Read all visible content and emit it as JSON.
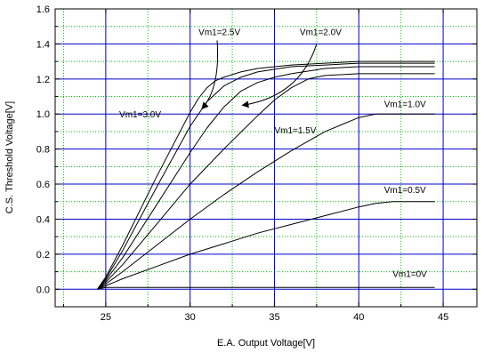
{
  "chart_data": {
    "type": "line",
    "title": "",
    "xlabel": "E.A. Output Voltage[V]",
    "ylabel": "C.S. Threshold Voltage[V]",
    "xlim": [
      22,
      47
    ],
    "ylim": [
      -0.1,
      1.6
    ],
    "xticks": [
      "25",
      "30",
      "35",
      "40",
      "45"
    ],
    "xtick_values": [
      25,
      30,
      35,
      40,
      45
    ],
    "yticks": [
      "0.0",
      "0.2",
      "0.4",
      "0.6",
      "0.8",
      "1.0",
      "1.2",
      "1.4",
      "1.6"
    ],
    "ytick_values": [
      0.0,
      0.2,
      0.4,
      0.6,
      0.8,
      1.0,
      1.2,
      1.4,
      1.6
    ],
    "grid": true,
    "colors": {
      "major_grid": "#0000cc",
      "minor_grid": "#00bb00",
      "line": "#000000"
    },
    "series": [
      {
        "name": "Vm1=0V",
        "x": [
          24.5,
          25.0,
          30.0,
          35.0,
          40.0,
          44.5
        ],
        "y": [
          0.0,
          0.01,
          0.01,
          0.01,
          0.01,
          0.01
        ]
      },
      {
        "name": "Vm1=0.5V",
        "x": [
          24.5,
          25.0,
          26.0,
          28.0,
          30.0,
          32.0,
          34.0,
          36.0,
          38.0,
          40.0,
          41.0,
          42.0,
          44.5
        ],
        "y": [
          0.0,
          0.02,
          0.06,
          0.13,
          0.2,
          0.26,
          0.32,
          0.37,
          0.42,
          0.47,
          0.49,
          0.5,
          0.5
        ]
      },
      {
        "name": "Vm1=1.0V",
        "x": [
          24.5,
          25.0,
          26.0,
          28.0,
          30.0,
          32.0,
          34.0,
          36.0,
          38.0,
          40.0,
          41.0,
          42.0,
          44.5
        ],
        "y": [
          0.0,
          0.03,
          0.1,
          0.25,
          0.4,
          0.54,
          0.67,
          0.79,
          0.9,
          0.98,
          1.0,
          1.0,
          1.0
        ]
      },
      {
        "name": "Vm1=1.5V",
        "x": [
          24.5,
          25.0,
          26.0,
          28.0,
          30.0,
          32.0,
          34.0,
          35.0,
          36.0,
          37.0,
          38.0,
          40.0,
          44.5
        ],
        "y": [
          0.0,
          0.04,
          0.14,
          0.37,
          0.6,
          0.8,
          0.99,
          1.08,
          1.15,
          1.2,
          1.22,
          1.23,
          1.23
        ]
      },
      {
        "name": "Vm1=2.0V",
        "x": [
          24.5,
          25.0,
          26.0,
          28.0,
          30.0,
          31.0,
          32.0,
          33.0,
          34.0,
          35.0,
          36.0,
          38.0,
          40.0,
          44.5
        ],
        "y": [
          0.0,
          0.05,
          0.18,
          0.48,
          0.78,
          0.92,
          1.04,
          1.13,
          1.18,
          1.21,
          1.23,
          1.26,
          1.27,
          1.27
        ]
      },
      {
        "name": "Vm1=2.5V",
        "x": [
          24.5,
          25.0,
          26.0,
          28.0,
          30.0,
          31.0,
          32.0,
          33.0,
          34.0,
          36.0,
          38.0,
          40.0,
          44.5
        ],
        "y": [
          0.0,
          0.06,
          0.22,
          0.58,
          0.93,
          1.07,
          1.16,
          1.21,
          1.24,
          1.27,
          1.28,
          1.29,
          1.29
        ]
      },
      {
        "name": "Vm1=3.0V",
        "x": [
          24.5,
          25.0,
          26.0,
          28.0,
          30.0,
          30.5,
          31.0,
          31.5,
          32.0,
          33.0,
          34.0,
          36.0,
          40.0,
          44.5
        ],
        "y": [
          0.0,
          0.07,
          0.25,
          0.64,
          1.01,
          1.09,
          1.15,
          1.19,
          1.21,
          1.24,
          1.26,
          1.28,
          1.3,
          1.3
        ]
      }
    ],
    "annotations": [
      {
        "text": "Vm1=2.5V",
        "x": 30.5,
        "y": 1.45
      },
      {
        "text": "Vm1=2.0V",
        "x": 36.5,
        "y": 1.45
      },
      {
        "text": "Vm1=3.0V",
        "x": 25.8,
        "y": 0.98
      },
      {
        "text": "Vm1=1.5V",
        "x": 35.0,
        "y": 0.89
      },
      {
        "text": "Vm1=1.0V",
        "x": 41.5,
        "y": 1.04
      },
      {
        "text": "Vm1=0.5V",
        "x": 41.5,
        "y": 0.55
      },
      {
        "text": "Vm1=0V",
        "x": 42.0,
        "y": 0.07
      }
    ],
    "arrows": [
      {
        "from": [
          31.6,
          1.42
        ],
        "ctrl": [
          31.8,
          1.15
        ],
        "to": [
          30.7,
          1.03
        ]
      },
      {
        "from": [
          37.5,
          1.4
        ],
        "ctrl": [
          36.5,
          1.1
        ],
        "to": [
          33.1,
          1.05
        ]
      }
    ]
  }
}
